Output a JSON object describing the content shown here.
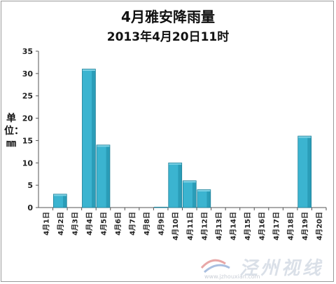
{
  "chart_data": {
    "type": "bar",
    "title": "4月雅安降雨量",
    "subtitle": "2013年4月20日11时",
    "ylabel": "单位：㎜",
    "ylim": [
      0,
      35
    ],
    "yticks": [
      "0",
      "5",
      "10",
      "15",
      "20",
      "25",
      "30",
      "35"
    ],
    "categories": [
      "4月1日",
      "4月2日",
      "4月3日",
      "4月4日",
      "4月5日",
      "4月6日",
      "4月7日",
      "4月8日",
      "4月9日",
      "4月10日",
      "4月11日",
      "4月12日",
      "4月13日",
      "4月14日",
      "4月15日",
      "4月16日",
      "4月17日",
      "4月18日",
      "4月19日",
      "4月20日"
    ],
    "values": [
      0,
      3,
      0,
      31,
      14,
      0,
      0,
      0,
      0.1,
      10,
      6,
      4,
      0,
      0,
      0,
      0,
      0,
      0,
      16,
      0
    ],
    "bar_color": "#3bb4d0",
    "bar_side_color": "#1e8aa4",
    "bar_top_color": "#7fd3e6",
    "grid": false,
    "legend": "none"
  },
  "watermark": {
    "text": "泾州视线",
    "url": "www.jzhouxian.com"
  }
}
